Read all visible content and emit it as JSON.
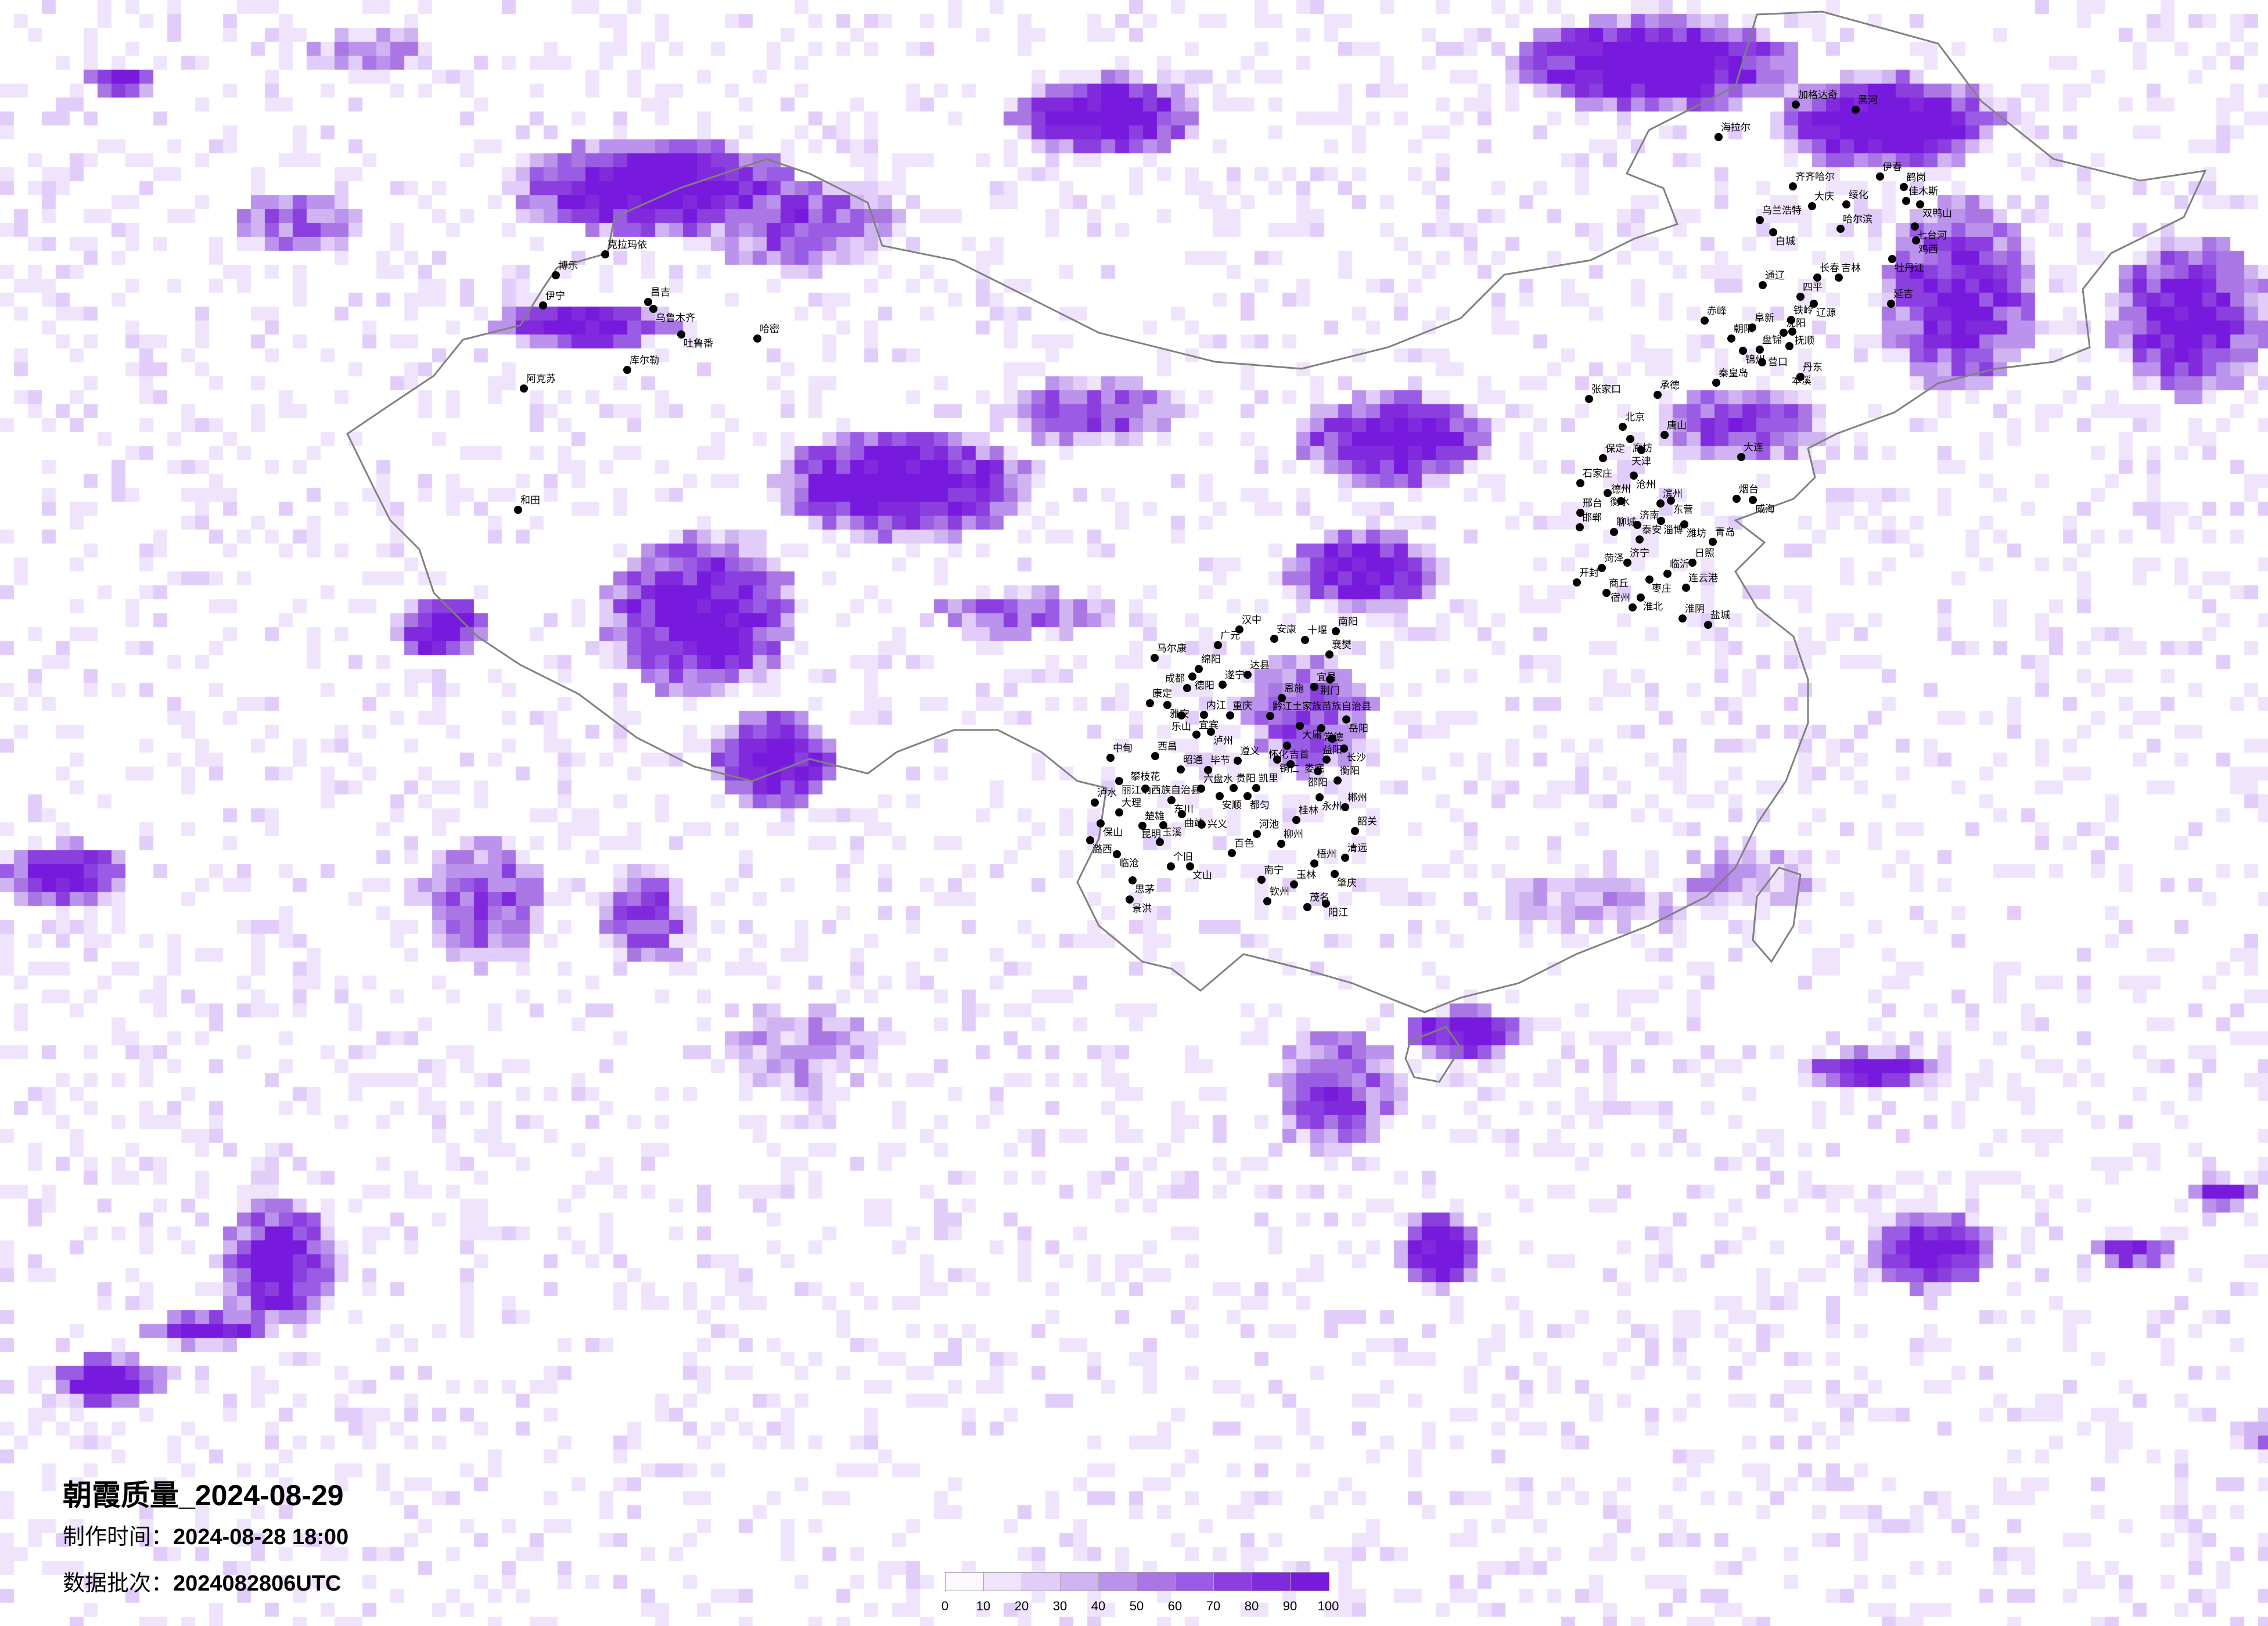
{
  "title": "朝霞质量_2024-08-29",
  "make_time": {
    "label": "制作时间：",
    "value": "2024-08-28 18:00"
  },
  "data_batch": {
    "label": "数据批次：",
    "value": "2024082806UTC"
  },
  "colorbar": {
    "ticks": [
      "0",
      "10",
      "20",
      "30",
      "40",
      "50",
      "60",
      "70",
      "80",
      "90",
      "100"
    ],
    "colors": [
      "#fcf8fe",
      "#efe4fb",
      "#e2cdfa",
      "#d0b4f1",
      "#bb93ec",
      "#a976e4",
      "#9a5ce5",
      "#8a3fde",
      "#8129dc",
      "#771add"
    ]
  },
  "border_color": "#808080",
  "cities": [
    "克拉玛依",
    "博乐",
    "伊宁",
    "昌吉",
    "乌鲁木齐",
    "吐鲁番",
    "哈密",
    "库尔勒",
    "阿克苏",
    "和田",
    "加格达奇",
    "黑河",
    "海拉尔",
    "齐齐哈尔",
    "伊春",
    "鹤岗",
    "佳木斯",
    "双鸭山",
    "大庆",
    "绥化",
    "乌兰浩特",
    "白城",
    "哈尔滨",
    "七台河",
    "鸡西",
    "牡丹江",
    "长春",
    "吉林",
    "通辽",
    "四平",
    "辽源",
    "延吉",
    "赤峰",
    "阜新",
    "铁岭",
    "沈阳",
    "抚顺",
    "朝阳",
    "锦州",
    "盘锦",
    "营口",
    "丹东",
    "秦皇岛",
    "本溪",
    "张家口",
    "承德",
    "北京",
    "廊坊",
    "唐山",
    "天津",
    "保定",
    "大连",
    "沧州",
    "石家庄",
    "衡水",
    "德州",
    "滨州",
    "东营",
    "烟台",
    "威海",
    "邢台",
    "邯郸",
    "济南",
    "淄博",
    "潍坊",
    "聊城",
    "泰安",
    "青岛",
    "菏泽",
    "济宁",
    "日照",
    "临沂",
    "枣庄",
    "连云港",
    "商丘",
    "开封",
    "淮北",
    "宿州",
    "淮阴",
    "盐城",
    "汉中",
    "广元",
    "安康",
    "十堰",
    "南阳",
    "马尔康",
    "绵阳",
    "德阳",
    "成都",
    "达县",
    "遂宁",
    "康定",
    "雅安",
    "乐山",
    "内江",
    "重庆",
    "宜宾",
    "泸州",
    "襄樊",
    "宜昌",
    "荆门",
    "恩施",
    "黔江土家族苗族自治县",
    "大庸",
    "常德",
    "岳阳",
    "益阳",
    "吉首",
    "长沙",
    "西昌",
    "中甸",
    "遵义",
    "铜仁",
    "怀化",
    "娄底",
    "昭通",
    "毕节",
    "邵阳",
    "衡阳",
    "丽江纳西族自治县",
    "攀枝花",
    "六盘水",
    "贵阳",
    "凯里",
    "安顺",
    "都匀",
    "东川",
    "泸水",
    "永州",
    "郴州",
    "大理",
    "曲靖",
    "保山",
    "楚雄",
    "昆明",
    "兴义",
    "桂林",
    "韶关",
    "河池",
    "潞西",
    "玉溪",
    "柳州",
    "临沧",
    "百色",
    "清远",
    "梧州",
    "个旧",
    "文山",
    "思茅",
    "南宁",
    "玉林",
    "肇庆",
    "景洪",
    "钦州",
    "茂名",
    "阳江"
  ]
}
